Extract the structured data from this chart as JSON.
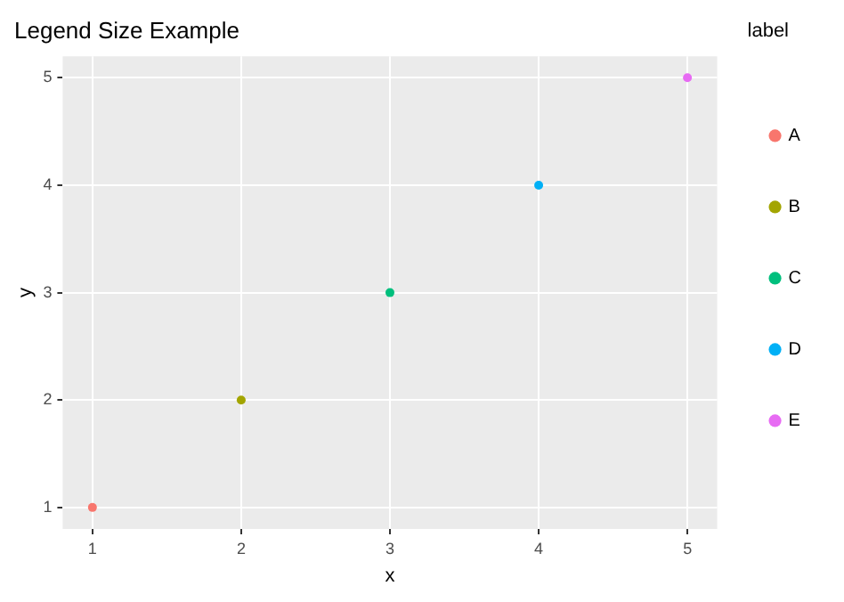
{
  "chart_data": {
    "type": "scatter",
    "title": "Legend Size Example",
    "xlabel": "x",
    "ylabel": "y",
    "legend_title": "label",
    "series": [
      {
        "name": "A",
        "color": "#f8766d",
        "x": [
          1
        ],
        "values": [
          1
        ]
      },
      {
        "name": "B",
        "color": "#a3a500",
        "x": [
          2
        ],
        "values": [
          2
        ]
      },
      {
        "name": "C",
        "color": "#00bf7d",
        "x": [
          3
        ],
        "values": [
          3
        ]
      },
      {
        "name": "D",
        "color": "#00b0f6",
        "x": [
          4
        ],
        "values": [
          4
        ]
      },
      {
        "name": "E",
        "color": "#e76bf3",
        "x": [
          5
        ],
        "values": [
          5
        ]
      }
    ],
    "xlim": [
      0.8,
      5.2
    ],
    "ylim": [
      0.8,
      5.2
    ],
    "xticks": [
      1,
      2,
      3,
      4,
      5
    ],
    "yticks": [
      1,
      2,
      3,
      4,
      5
    ],
    "grid": true,
    "legend": "right",
    "marker": "circle"
  }
}
